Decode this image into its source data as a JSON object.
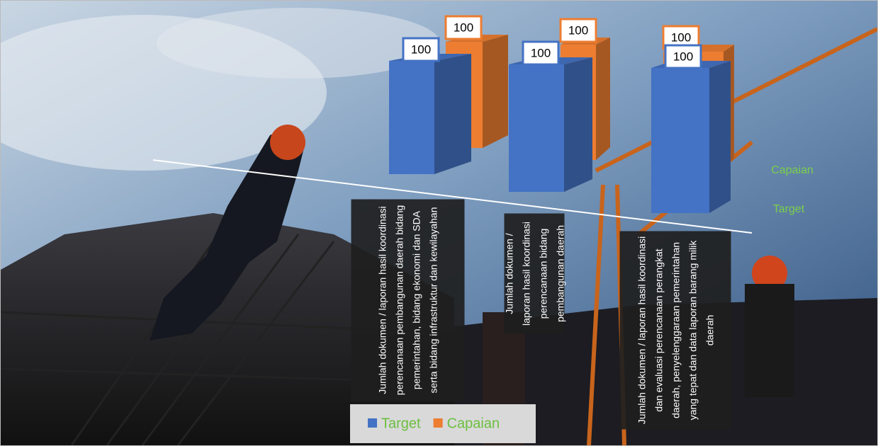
{
  "chart_data": {
    "type": "bar3d",
    "categories": [
      "Jumlah dokumen / laporan hasil koordinasi  perencanaan pembangunan daerah bidang pemerintahan, bidang ekonomi dan SDA serta bidang infrastruktur dan kewilayahan",
      "Jumlah dokumen / laporan hasil koordinasi  perencanaan bidang pembangunan daerah",
      "Jumlah dokumen / laporan hasil koordinasi dan evaluasi perencanaan perangkat daerah, penyelenggaraan pemerintahan yang tepat dan data laporan barang milik daerah"
    ],
    "series": [
      {
        "name": "Target",
        "color": "#4472c4",
        "values": [
          100,
          100,
          100
        ]
      },
      {
        "name": "Capaian",
        "color": "#ed7d31",
        "values": [
          100,
          100,
          100
        ]
      }
    ],
    "legend": "bottom"
  }
}
